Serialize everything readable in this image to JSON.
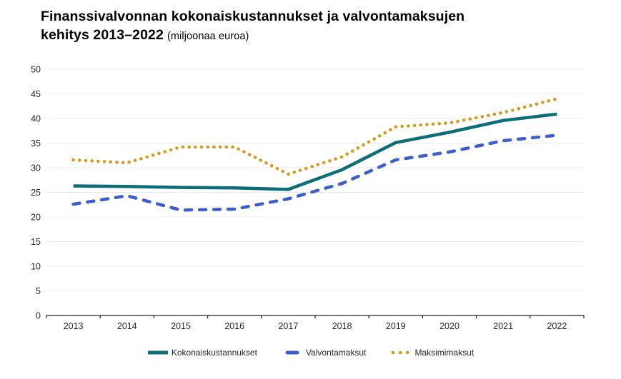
{
  "title": {
    "line1": "Finanssivalvonnan kokonaiskustannukset ja valvontamaksujen",
    "line2_bold": "kehitys 2013–2022",
    "line2_note": "(miljoonaa euroa)"
  },
  "chart_data": {
    "type": "line",
    "categories": [
      "2013",
      "2014",
      "2015",
      "2016",
      "2017",
      "2018",
      "2019",
      "2020",
      "2021",
      "2022"
    ],
    "series": [
      {
        "name": "Kokonaiskustannukset",
        "style": "solid",
        "color": "#0d6e78",
        "values": [
          26.3,
          26.2,
          26.0,
          25.9,
          25.6,
          29.6,
          35.1,
          37.2,
          39.6,
          40.9
        ]
      },
      {
        "name": "Valvontamaksut",
        "style": "dashed",
        "color": "#3e5fc9",
        "values": [
          22.6,
          24.3,
          21.4,
          21.6,
          23.7,
          26.8,
          31.6,
          33.2,
          35.5,
          36.6
        ]
      },
      {
        "name": "Maksimimaksut",
        "style": "dotted",
        "color": "#d29a15",
        "values": [
          31.6,
          31.0,
          34.2,
          34.2,
          28.7,
          32.2,
          38.3,
          39.1,
          41.2,
          44.0
        ]
      }
    ],
    "ylim": [
      0,
      50
    ],
    "ytick_step": 5,
    "grid": true,
    "legend_position": "bottom"
  },
  "colors": {
    "background": "#ffffff",
    "grid": "#ebebeb",
    "axis": "#262626",
    "tick_text": "#262626",
    "title_text": "#000000"
  }
}
